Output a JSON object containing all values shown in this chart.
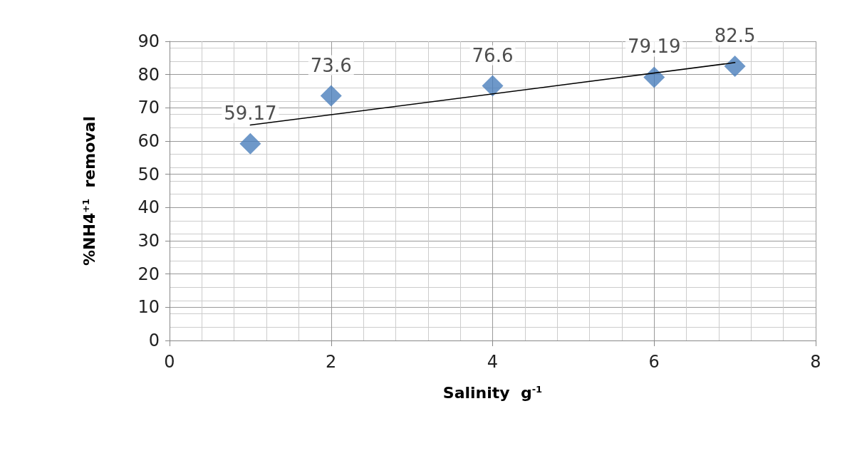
{
  "chart_data": {
    "type": "scatter",
    "xlabel": "Salinity  g$^{-1}$",
    "ylabel": "%NH4$^{+1}$  removal",
    "x": [
      1,
      2,
      4,
      6,
      7
    ],
    "series": [
      {
        "color": "#4a7ebb",
        "values": [
          59.17,
          73.6,
          76.6,
          79.19,
          82.5
        ],
        "marker": "diamond",
        "data_labels": true
      },
      {
        "type": "line",
        "color": "#000000",
        "x": [
          1,
          7
        ],
        "values": [
          64.8,
          83.6
        ],
        "marker": "none",
        "line_style": "solid"
      }
    ],
    "xlim": [
      0,
      8
    ],
    "xticks": [
      0,
      2,
      4,
      6,
      8
    ],
    "ylim": [
      0,
      90
    ],
    "yticks": [
      0,
      10,
      20,
      30,
      40,
      50,
      60,
      70,
      80,
      90
    ],
    "grid": true
  }
}
